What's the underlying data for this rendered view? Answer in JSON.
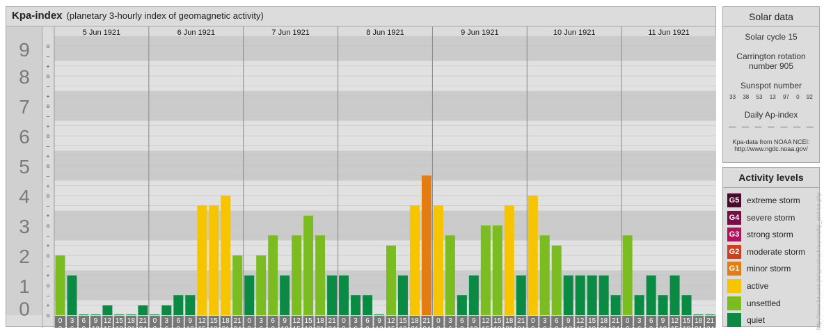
{
  "header": {
    "title": "Kpa-index",
    "subtitle": "(planetary 3-hourly index of geomagnetic activity)"
  },
  "chart_data": {
    "type": "bar",
    "title": "Kpa-index",
    "subtitle": "(planetary 3-hourly index of geomagnetic activity)",
    "days": [
      "5 Jun 1921",
      "6 Jun 1921",
      "7 Jun 1921",
      "8 Jun 1921",
      "9 Jun 1921",
      "10 Jun 1921",
      "11 Jun 1921"
    ],
    "interval_start_labels": [
      "0",
      "3",
      "6",
      "9",
      "12",
      "15",
      "18",
      "21"
    ],
    "interval_end_labels": [
      "3",
      "6",
      "9",
      "12",
      "15",
      "18",
      "21",
      "24"
    ],
    "y_tick_labels": [
      "0",
      "1",
      "2",
      "3",
      "4",
      "5",
      "6",
      "7",
      "8",
      "9"
    ],
    "y_sub_tick_labels": [
      "+",
      "o",
      "–"
    ],
    "ylim": [
      0,
      9.33
    ],
    "values": [
      [
        2.0,
        1.33,
        0,
        0,
        0.33,
        0,
        0,
        0.33
      ],
      [
        0,
        0.33,
        0.67,
        0.67,
        3.67,
        3.67,
        4.0,
        2.0
      ],
      [
        1.33,
        2.0,
        2.67,
        1.33,
        2.67,
        3.33,
        2.67,
        1.33
      ],
      [
        1.33,
        0.67,
        0.67,
        0,
        2.33,
        1.33,
        3.67,
        4.67
      ],
      [
        3.67,
        2.67,
        0.67,
        1.33,
        3.0,
        3.0,
        3.67,
        1.33
      ],
      [
        4.0,
        2.67,
        2.33,
        1.33,
        1.33,
        1.33,
        1.33,
        0.67
      ],
      [
        2.67,
        0.67,
        1.33,
        0.67,
        1.33,
        0.67,
        0,
        0
      ]
    ],
    "colors": {
      "quiet": "#0b8a44",
      "unsettled": "#7bbd21",
      "active": "#f7c400",
      "minor": "#e37d12"
    }
  },
  "solar": {
    "title": "Solar data",
    "cycle": "Solar cycle 15",
    "carrington_line1": "Carrington rotation",
    "carrington_line2": "number 905",
    "sunspot_title": "Sunspot number",
    "sunspots": [
      "33",
      "38",
      "53",
      "13",
      "97",
      "0",
      "92"
    ],
    "ap_title": "Daily Ap-index",
    "ap_values": [
      "––",
      "––",
      "––",
      "––",
      "––",
      "––",
      "––"
    ],
    "source_line1": "Kpa-data from NOAA NCEI:",
    "source_line2": "http://www.ngdc.noaa.gov/"
  },
  "activity": {
    "title": "Activity levels",
    "levels": [
      {
        "code": "G5",
        "label": "extreme storm",
        "color": "#4a0a2b"
      },
      {
        "code": "G4",
        "label": "severe storm",
        "color": "#7a0d46"
      },
      {
        "code": "G3",
        "label": "strong storm",
        "color": "#b0135c"
      },
      {
        "code": "G2",
        "label": "moderate storm",
        "color": "#d23f1c"
      },
      {
        "code": "G1",
        "label": "minor storm",
        "color": "#e37d12"
      },
      {
        "code": "",
        "label": "active",
        "color": "#f7c400"
      },
      {
        "code": "",
        "label": "unsettled",
        "color": "#7bbd21"
      },
      {
        "code": "",
        "label": "quiet",
        "color": "#0b8a44"
      }
    ]
  },
  "watermark": "http://www.tieuwse.de/spicetrack/aurora/kp_archive.php"
}
